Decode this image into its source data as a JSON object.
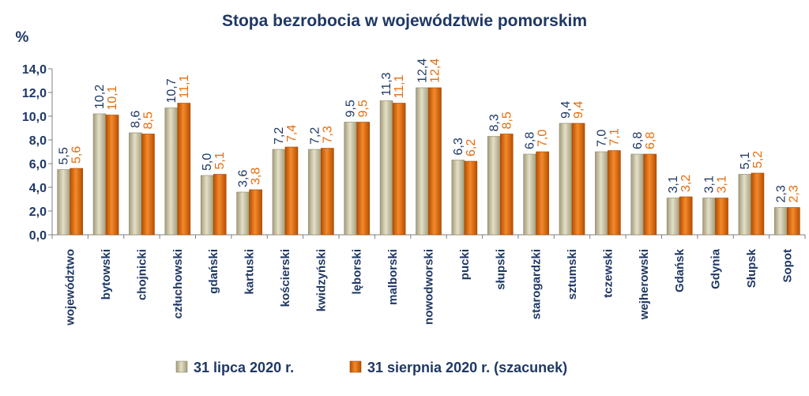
{
  "chart_data": {
    "type": "bar",
    "title": "Stopa bezrobocia w województwie pomorskim",
    "ylabel": "%",
    "xlabel": "",
    "ylim": [
      0,
      14
    ],
    "yticks": [
      "0,0",
      "2,0",
      "4,0",
      "6,0",
      "8,0",
      "10,0",
      "12,0",
      "14,0"
    ],
    "grid": false,
    "legend_position": "bottom",
    "categories": [
      "województwo",
      "bytowski",
      "chojnicki",
      "człuchowski",
      "gdański",
      "kartuski",
      "kościerski",
      "kwidzyński",
      "lęborski",
      "malborski",
      "nowodworski",
      "pucki",
      "słupski",
      "starogardzki",
      "sztumski",
      "tczewski",
      "wejherowski",
      "Gdańsk",
      "Gdynia",
      "Słupsk",
      "Sopot"
    ],
    "series": [
      {
        "name": "31 lipca 2020 r.",
        "color": "#cfc8a6",
        "label_color": "#1f3864",
        "values": [
          5.5,
          10.2,
          8.6,
          10.7,
          5.0,
          3.6,
          7.2,
          7.2,
          9.5,
          11.3,
          12.4,
          6.3,
          8.3,
          6.8,
          9.4,
          7.0,
          6.8,
          3.1,
          3.1,
          5.1,
          2.3
        ],
        "labels": [
          "5,5",
          "10,2",
          "8,6",
          "10,7",
          "5,0",
          "3,6",
          "7,2",
          "7,2",
          "9,5",
          "11,3",
          "12,4",
          "6,3",
          "8,3",
          "6,8",
          "9,4",
          "7,0",
          "6,8",
          "3,1",
          "3,1",
          "5,1",
          "2,3"
        ]
      },
      {
        "name": "31 sierpnia 2020 r. (szacunek)",
        "color": "#e46c0a",
        "label_color": "#e46c0a",
        "values": [
          5.6,
          10.1,
          8.5,
          11.1,
          5.1,
          3.8,
          7.4,
          7.3,
          9.5,
          11.1,
          12.4,
          6.2,
          8.5,
          7.0,
          9.4,
          7.1,
          6.8,
          3.2,
          3.1,
          5.2,
          2.3
        ],
        "labels": [
          "5,6",
          "10,1",
          "8,5",
          "11,1",
          "5,1",
          "3,8",
          "7,4",
          "7,3",
          "9,5",
          "11,1",
          "12,4",
          "6,2",
          "8,5",
          "7,0",
          "9,4",
          "7,1",
          "6,8",
          "3,2",
          "3,1",
          "5,2",
          "2,3"
        ]
      }
    ]
  }
}
